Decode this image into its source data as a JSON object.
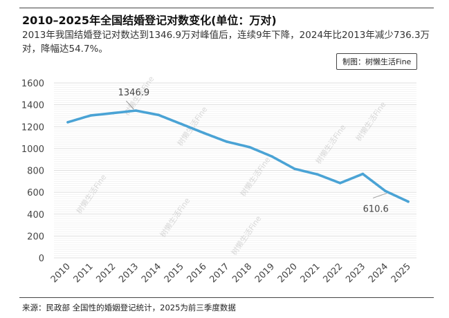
{
  "header": {
    "title": "2010–2025年全国结婚登记对数变化(单位：万对)",
    "subtitle": "2013年我国结婚登记对数达到1346.9万对峰值后，连续9年下降，2024年比2013年减少736.3万对，降幅达54.7%。",
    "credit": "制图：树懒生活Fine"
  },
  "footer": {
    "source": "来源：民政部 全国性的婚姻登记统计，2025为前三季度数据"
  },
  "watermark": "树懒生活Fine",
  "colors": {
    "line": "#4aa3d5",
    "grid": "#dedede",
    "axis_text": "#555555"
  },
  "chart_data": {
    "type": "line",
    "title": "2010–2025年全国结婚登记对数变化(单位：万对)",
    "xlabel": "",
    "ylabel": "",
    "x": [
      "2010",
      "2011",
      "2012",
      "2013",
      "2014",
      "2015",
      "2016",
      "2017",
      "2018",
      "2019",
      "2020",
      "2021",
      "2022",
      "2023",
      "2024",
      "2025"
    ],
    "series": [
      {
        "values": [
          1241,
          1302,
          1324,
          1346.9,
          1307,
          1225,
          1142,
          1063,
          1014,
          927,
          814,
          764,
          684,
          768,
          610.6,
          515
        ]
      }
    ],
    "ylim": [
      0,
      1600
    ],
    "yticks": [
      0,
      200,
      400,
      600,
      800,
      1000,
      1200,
      1400,
      1600
    ],
    "grid": true,
    "annotations": [
      {
        "x": "2013",
        "label": "1346.9"
      },
      {
        "x": "2024",
        "label": "610.6"
      }
    ]
  }
}
